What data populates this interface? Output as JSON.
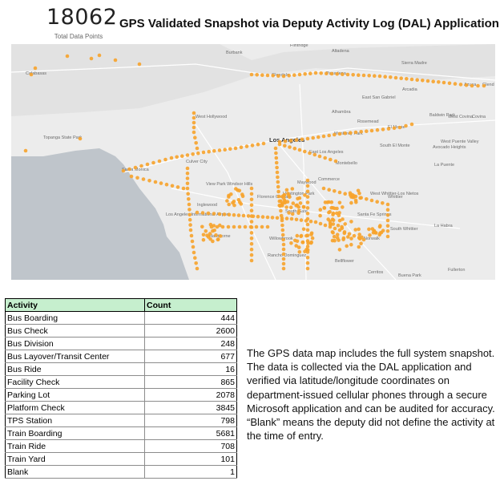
{
  "kpi": {
    "value": "18062",
    "label": "Total Data Points"
  },
  "title": "GPS Validated Snapshot via Deputy Activity Log (DAL) Application",
  "colors": {
    "point": "#f7a32b",
    "ocean": "#bfc5cb",
    "land": "#ececec",
    "header_fill": "#c6efce"
  },
  "map": {
    "places": [
      {
        "id": "calabasas",
        "label": "Calabasas"
      },
      {
        "id": "burbank",
        "label": "Burbank"
      },
      {
        "id": "glendale",
        "label": "Glendale"
      },
      {
        "id": "pasadena",
        "label": "Pasadena"
      },
      {
        "id": "flintridge",
        "label": "Flintridge"
      },
      {
        "id": "altadena",
        "label": "Altadena"
      },
      {
        "id": "sierra-madre",
        "label": "Sierra Madre"
      },
      {
        "id": "arcadia",
        "label": "Arcadia"
      },
      {
        "id": "azusa",
        "label": "Azusa"
      },
      {
        "id": "glendora",
        "label": "Glend"
      },
      {
        "id": "west-hollywood",
        "label": "West Hollywood"
      },
      {
        "id": "los-angeles",
        "label": "Los Angeles"
      },
      {
        "id": "east-la",
        "label": "East Los Angeles"
      },
      {
        "id": "montebello",
        "label": "Montebello"
      },
      {
        "id": "monterey-park",
        "label": "Monterey Park"
      },
      {
        "id": "alhambra",
        "label": "Alhambra"
      },
      {
        "id": "el-monte",
        "label": "El Monte"
      },
      {
        "id": "rosemead",
        "label": "Rosemead"
      },
      {
        "id": "east-san-gabriel",
        "label": "East San Gabriel"
      },
      {
        "id": "baldwin-park",
        "label": "Baldwin Park"
      },
      {
        "id": "west-covina",
        "label": "West Covina"
      },
      {
        "id": "covina",
        "label": "Covina"
      },
      {
        "id": "south-el-monte",
        "label": "South El Monte"
      },
      {
        "id": "avocado-heights",
        "label": "Avocado Heights"
      },
      {
        "id": "west-puente-valley",
        "label": "West Puente Valley"
      },
      {
        "id": "la-puente",
        "label": "La Puente"
      },
      {
        "id": "topanga",
        "label": "Topanga State Park"
      },
      {
        "id": "santa-monica",
        "label": "Santa Monica"
      },
      {
        "id": "culver-city",
        "label": "Culver City"
      },
      {
        "id": "view-park",
        "label": "View Park Windsor Hills"
      },
      {
        "id": "inglewood",
        "label": "Inglewood"
      },
      {
        "id": "lax",
        "label": "Los Angeles International Airport"
      },
      {
        "id": "hawthorne",
        "label": "Hawthorne"
      },
      {
        "id": "florence",
        "label": "Florence Graham"
      },
      {
        "id": "huntington-park",
        "label": "Huntington Park"
      },
      {
        "id": "maywood",
        "label": "Maywood"
      },
      {
        "id": "commerce",
        "label": "Commerce"
      },
      {
        "id": "south-gate",
        "label": "South Gate"
      },
      {
        "id": "santa-fe-springs",
        "label": "Santa Fe Springs"
      },
      {
        "id": "west-whittier",
        "label": "West Whittier-Los Nietos"
      },
      {
        "id": "whittier",
        "label": "Whittier"
      },
      {
        "id": "south-whittier",
        "label": "South Whittier"
      },
      {
        "id": "la-habra",
        "label": "La Habra"
      },
      {
        "id": "norwalk",
        "label": "Norwalk"
      },
      {
        "id": "willowbrook",
        "label": "Willowbrook"
      },
      {
        "id": "rancho-dominguez",
        "label": "Rancho Dominguez"
      },
      {
        "id": "bellflower",
        "label": "Bellflower"
      },
      {
        "id": "cerritos",
        "label": "Cerritos"
      },
      {
        "id": "buena-park",
        "label": "Buena Park"
      },
      {
        "id": "fullerton",
        "label": "Fullerton"
      }
    ]
  },
  "table": {
    "headers": [
      "Activity",
      "Count"
    ],
    "rows": [
      {
        "activity": "Bus Boarding",
        "count": "444"
      },
      {
        "activity": "Bus Check",
        "count": "2600"
      },
      {
        "activity": "Bus Division",
        "count": "248"
      },
      {
        "activity": "Bus Layover/Transit Center",
        "count": "677"
      },
      {
        "activity": "Bus Ride",
        "count": "16"
      },
      {
        "activity": "Facility Check",
        "count": "865"
      },
      {
        "activity": "Parking Lot",
        "count": "2078"
      },
      {
        "activity": "Platform Check",
        "count": "3845"
      },
      {
        "activity": "TPS Station",
        "count": "798"
      },
      {
        "activity": "Train Boarding",
        "count": "5681"
      },
      {
        "activity": "Train Ride",
        "count": "708"
      },
      {
        "activity": "Train Yard",
        "count": "101"
      },
      {
        "activity": "Blank",
        "count": "1"
      }
    ]
  },
  "description": "The GPS data map includes the full system snapshot. The data is collected via the DAL application and verified via latitude/longitude coordinates on department-issued cellular phones through a secure Microsoft application and can be audited for accuracy. “Blank” means the deputy did not define the activity at the time of entry."
}
